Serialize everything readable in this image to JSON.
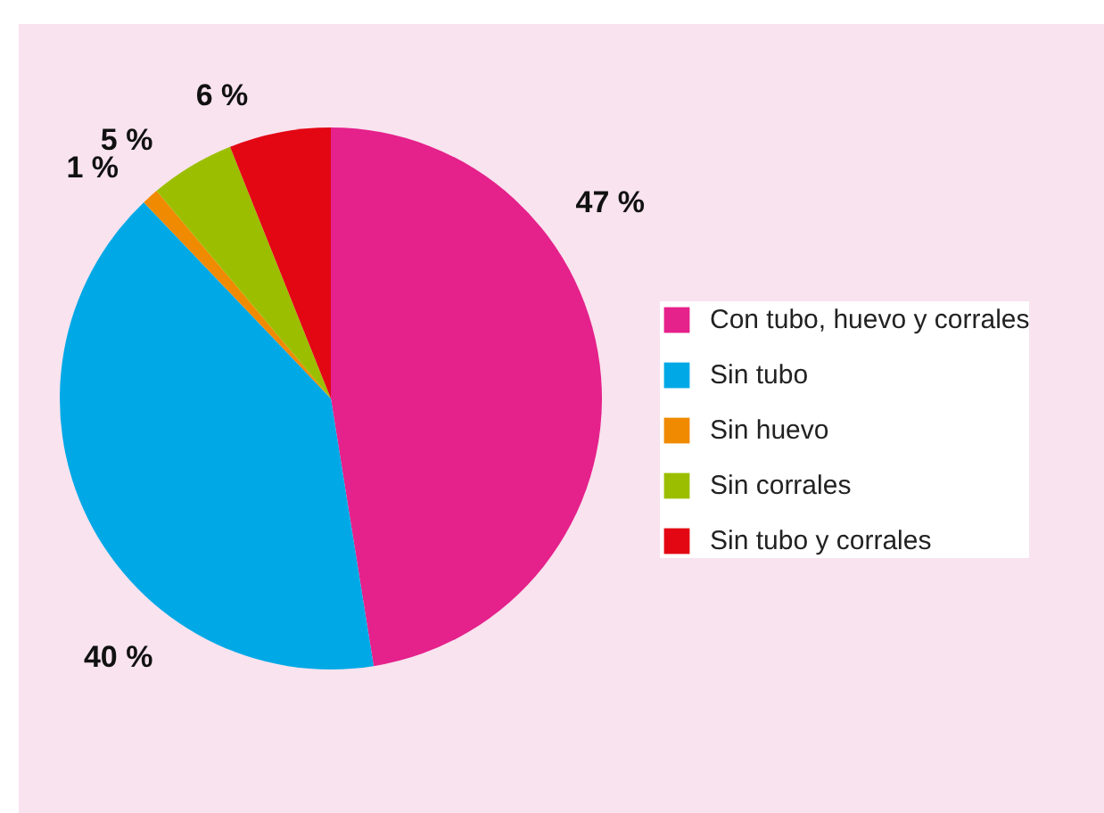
{
  "chart_data": {
    "type": "pie",
    "categories": [
      "Con tubo, huevo y corrales",
      "Sin tubo",
      "Sin huevo",
      "Sin corrales",
      "Sin tubo y corrales"
    ],
    "values": [
      47,
      40,
      1,
      5,
      6
    ],
    "colors": [
      "#e5218b",
      "#00a9e6",
      "#f08a00",
      "#9bbf00",
      "#e30613"
    ],
    "value_labels": [
      "47 %",
      "40 %",
      "1 %",
      "5 %",
      "6 %"
    ],
    "legend": "right"
  }
}
